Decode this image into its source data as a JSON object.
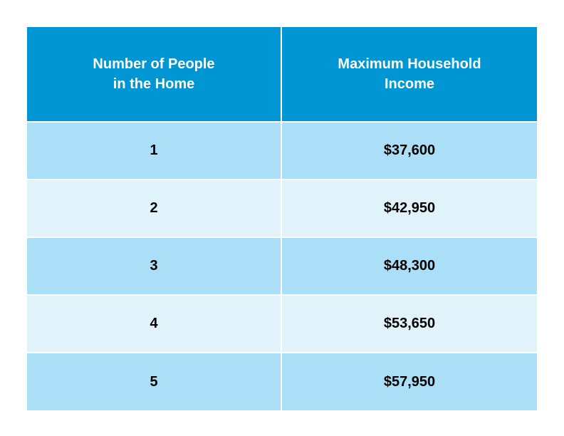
{
  "table": {
    "headers": {
      "people": "Number of People\nin the Home",
      "income": "Maximum Household\nIncome"
    },
    "rows": [
      {
        "people": "1",
        "income": "$37,600"
      },
      {
        "people": "2",
        "income": "$42,950"
      },
      {
        "people": "3",
        "income": "$48,300"
      },
      {
        "people": "4",
        "income": "$53,650"
      },
      {
        "people": "5",
        "income": "$57,950"
      }
    ]
  },
  "colors": {
    "header_bg": "#0095d3",
    "row_dark": "#abdff7",
    "row_light": "#e0f2fa"
  }
}
